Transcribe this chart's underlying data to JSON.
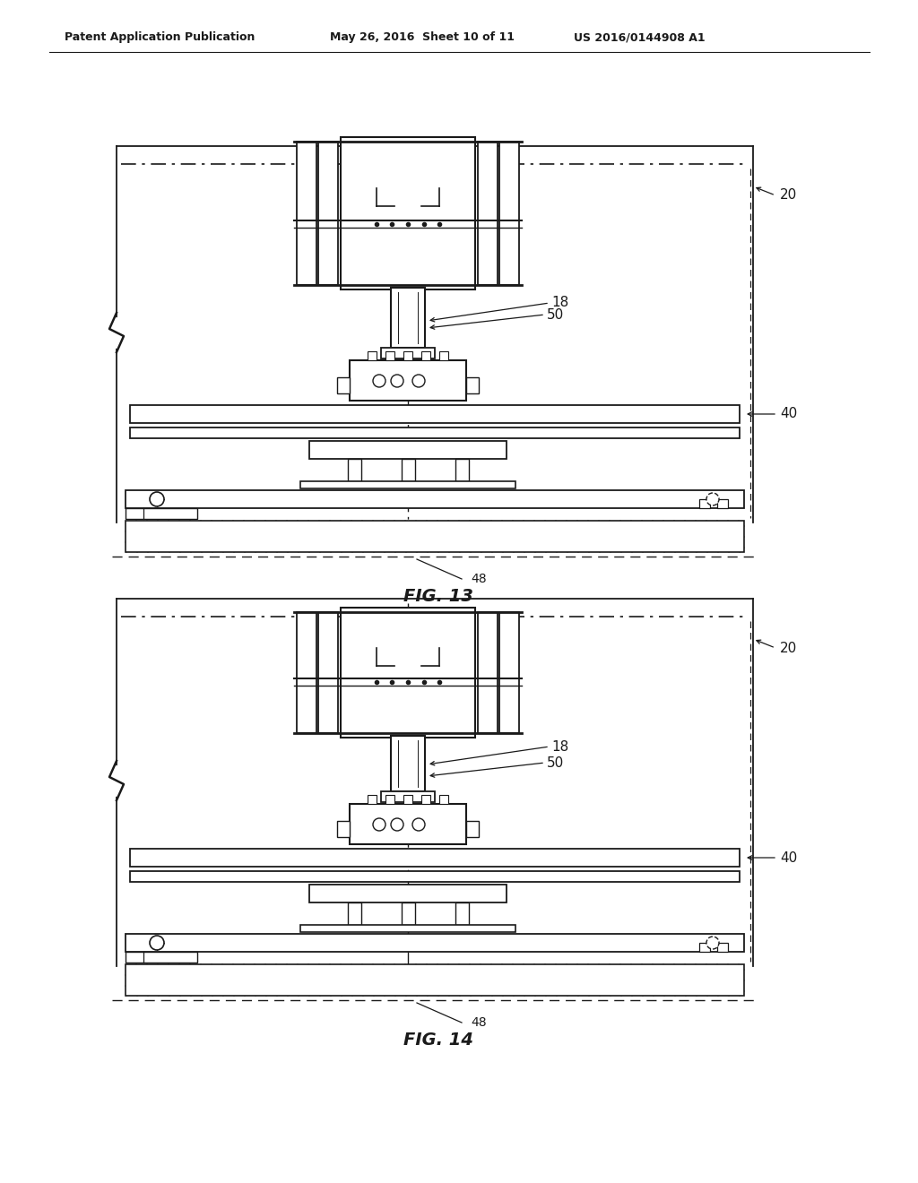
{
  "bg_color": "#ffffff",
  "line_color": "#1a1a1a",
  "header_left": "Patent Application Publication",
  "header_mid": "May 26, 2016  Sheet 10 of 11",
  "header_right": "US 2016/0144908 A1",
  "fig13_label": "FIG. 13",
  "fig14_label": "FIG. 14",
  "label_20": "20",
  "label_50": "50",
  "label_18": "18",
  "label_40": "40",
  "label_48": "48"
}
